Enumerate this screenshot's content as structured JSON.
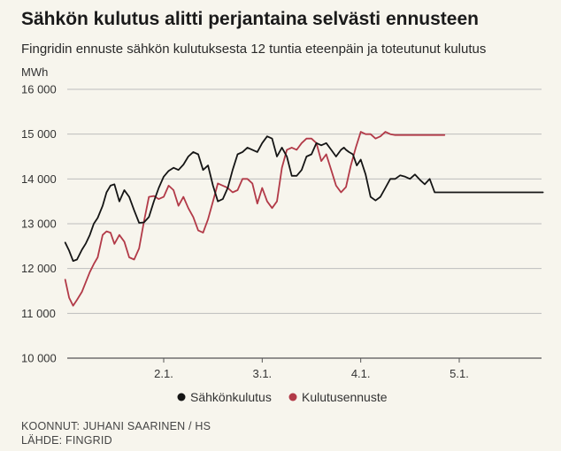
{
  "header": {
    "title": "Sähkön kulutus alitti perjantaina selvästi ennusteen",
    "subtitle": "Fingridin ennuste sähkön kulutuksesta 12 tuntia eteenpäin ja toteutunut kulutus"
  },
  "colors": {
    "background": "#f7f5ed",
    "grid": "#bdbdbd",
    "axis": "#555555",
    "text": "#333333"
  },
  "chart_data": {
    "type": "line",
    "ylabel": "MWh",
    "ylim": [
      10000,
      16000
    ],
    "yticks": [
      10000,
      11000,
      12000,
      13000,
      14000,
      15000,
      16000
    ],
    "ytick_labels": [
      "10 000",
      "11 000",
      "12 000",
      "13 000",
      "14 000",
      "15 000",
      "16 000"
    ],
    "xlim": [
      1.0,
      5.85
    ],
    "xticks": [
      2,
      3,
      4,
      5
    ],
    "xtick_labels": [
      "2.1.",
      "3.1.",
      "4.1.",
      "5.1."
    ],
    "grid": true,
    "legend_position": "bottom-center",
    "series": [
      {
        "name": "Sähkönkulutus",
        "color": "#151515",
        "x": [
          1.0,
          1.04,
          1.08,
          1.12,
          1.17,
          1.21,
          1.25,
          1.29,
          1.33,
          1.38,
          1.42,
          1.46,
          1.5,
          1.55,
          1.6,
          1.65,
          1.7,
          1.75,
          1.8,
          1.85,
          1.9,
          1.95,
          2.0,
          2.05,
          2.1,
          2.15,
          2.2,
          2.25,
          2.3,
          2.35,
          2.4,
          2.45,
          2.5,
          2.55,
          2.6,
          2.65,
          2.7,
          2.75,
          2.8,
          2.85,
          2.9,
          2.95,
          3.0,
          3.05,
          3.1,
          3.15,
          3.2,
          3.25,
          3.3,
          3.35,
          3.4,
          3.45,
          3.5,
          3.55,
          3.6,
          3.65,
          3.7,
          3.75,
          3.8,
          3.83,
          3.85,
          3.88,
          3.92,
          3.96,
          4.0,
          4.05,
          4.1,
          4.15,
          4.2,
          4.25,
          4.3,
          4.35,
          4.4,
          4.45,
          4.5,
          4.55,
          4.6,
          4.65,
          4.7,
          4.75,
          4.8,
          4.85,
          4.9,
          4.95,
          5.0,
          5.05,
          5.1,
          5.15,
          5.2,
          5.25,
          5.3,
          5.35,
          5.4,
          5.45,
          5.5,
          5.55,
          5.6,
          5.65,
          5.7,
          5.75,
          5.8,
          5.85
        ],
        "values": [
          12580,
          12400,
          12170,
          12200,
          12420,
          12560,
          12750,
          13000,
          13130,
          13400,
          13700,
          13850,
          13880,
          13500,
          13750,
          13600,
          13300,
          13020,
          13030,
          13150,
          13500,
          13800,
          14050,
          14180,
          14250,
          14200,
          14320,
          14500,
          14600,
          14550,
          14200,
          14300,
          13850,
          13500,
          13550,
          13800,
          14200,
          14550,
          14600,
          14700,
          14650,
          14600,
          14800,
          14950,
          14900,
          14500,
          14700,
          14500,
          14070,
          14070,
          14200,
          14500,
          14550,
          14800,
          14750,
          14800,
          14650,
          14500,
          14650,
          14700,
          14650,
          14600,
          14550,
          14300,
          14430,
          14100,
          13600,
          13520,
          13600,
          13800,
          14000,
          14000,
          14080,
          14050,
          14000,
          14100,
          13980,
          13880,
          14000,
          13700,
          13700,
          13700,
          13700,
          13700,
          13700,
          13700,
          13700,
          13700,
          13700,
          13700,
          13700,
          13700,
          13700,
          13700,
          13700,
          13700,
          13700,
          13700,
          13700,
          13700,
          13700,
          13700
        ]
      },
      {
        "name": "Kulutusennuste",
        "color": "#b23a48",
        "x": [
          1.0,
          1.04,
          1.08,
          1.12,
          1.17,
          1.21,
          1.25,
          1.29,
          1.33,
          1.38,
          1.42,
          1.46,
          1.5,
          1.55,
          1.6,
          1.65,
          1.7,
          1.75,
          1.8,
          1.85,
          1.9,
          1.95,
          2.0,
          2.05,
          2.1,
          2.15,
          2.2,
          2.25,
          2.3,
          2.35,
          2.4,
          2.45,
          2.5,
          2.55,
          2.6,
          2.65,
          2.7,
          2.75,
          2.8,
          2.85,
          2.9,
          2.95,
          3.0,
          3.05,
          3.1,
          3.15,
          3.2,
          3.25,
          3.3,
          3.35,
          3.4,
          3.45,
          3.5,
          3.55,
          3.6,
          3.65,
          3.7,
          3.75,
          3.8,
          3.85,
          3.9,
          3.95,
          4.0,
          4.05,
          4.1,
          4.15,
          4.2,
          4.25,
          4.3,
          4.35,
          4.4,
          4.45,
          4.5,
          4.55,
          4.6,
          4.65,
          4.7,
          4.75,
          4.8,
          4.85
        ],
        "values": [
          11750,
          11350,
          11170,
          11300,
          11480,
          11700,
          11920,
          12100,
          12250,
          12750,
          12830,
          12800,
          12550,
          12750,
          12600,
          12250,
          12200,
          12450,
          13050,
          13600,
          13620,
          13550,
          13600,
          13850,
          13750,
          13400,
          13600,
          13350,
          13150,
          12850,
          12800,
          13100,
          13500,
          13900,
          13850,
          13800,
          13700,
          13750,
          14000,
          14000,
          13900,
          13450,
          13800,
          13500,
          13350,
          13500,
          14250,
          14650,
          14700,
          14650,
          14800,
          14900,
          14900,
          14800,
          14400,
          14550,
          14200,
          13850,
          13700,
          13820,
          14300,
          14700,
          15050,
          15000,
          15000,
          14900,
          14950,
          15050,
          15000,
          14980,
          14980,
          14980,
          14980,
          14980,
          14980,
          14980,
          14980,
          14980,
          14980,
          14980
        ]
      }
    ]
  },
  "credits": {
    "line1": "KOONNUT: JUHANI SAARINEN / HS",
    "line2": "LÄHDE: FINGRID"
  }
}
